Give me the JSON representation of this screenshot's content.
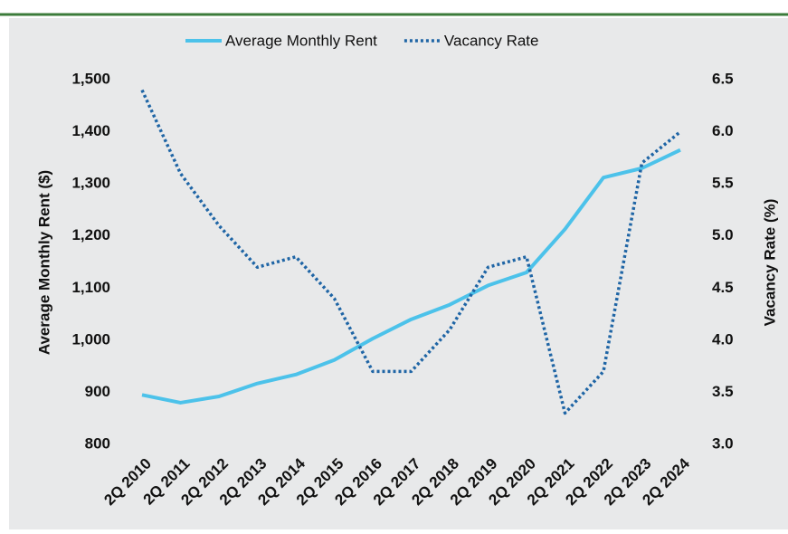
{
  "chart_data": {
    "type": "line",
    "categories": [
      "2Q 2010",
      "2Q 2011",
      "2Q 2012",
      "2Q 2013",
      "2Q 2014",
      "2Q 2015",
      "2Q 2016",
      "2Q 2017",
      "2Q 2018",
      "2Q 2019",
      "2Q 2020",
      "2Q 2021",
      "2Q 2022",
      "2Q 2023",
      "2Q 2024"
    ],
    "series": [
      {
        "name": "Average Monthly Rent",
        "color": "#4cc2ea",
        "values": [
          895,
          880,
          892,
          917,
          934,
          962,
          1003,
          1040,
          1068,
          1105,
          1130,
          1213,
          1312,
          1330,
          1365
        ]
      },
      {
        "name": "Vacancy Rate",
        "color": "#1f65a5",
        "axis": "y2",
        "dashed": true,
        "values": [
          6.4,
          5.6,
          5.1,
          4.7,
          4.8,
          4.4,
          3.7,
          3.7,
          4.1,
          4.7,
          4.8,
          3.3,
          3.7,
          5.7,
          6.0
        ]
      }
    ],
    "y_label": "Average Monthly Rent ($)",
    "y2_label": "Vacancy Rate (%)",
    "ylim": [
      800,
      1500
    ],
    "yticks": [
      800,
      900,
      {
        "value": 1000,
        "label": "1,000"
      },
      {
        "value": 1100,
        "label": "1,100"
      },
      {
        "value": 1200,
        "label": "1,200"
      },
      {
        "value": 1300,
        "label": "1,300"
      },
      {
        "value": 1400,
        "label": "1,400"
      },
      {
        "value": 1500,
        "label": "1,500"
      }
    ],
    "y2lim": [
      3,
      6.5
    ],
    "y2ticks": [
      {
        "value": 3,
        "label": "3.0"
      },
      3.5,
      {
        "value": 4,
        "label": "4.0"
      },
      4.5,
      {
        "value": 5,
        "label": "5.0"
      },
      5.5,
      {
        "value": 6,
        "label": "6.0"
      },
      6.5
    ],
    "grid": false,
    "legend": "top"
  }
}
